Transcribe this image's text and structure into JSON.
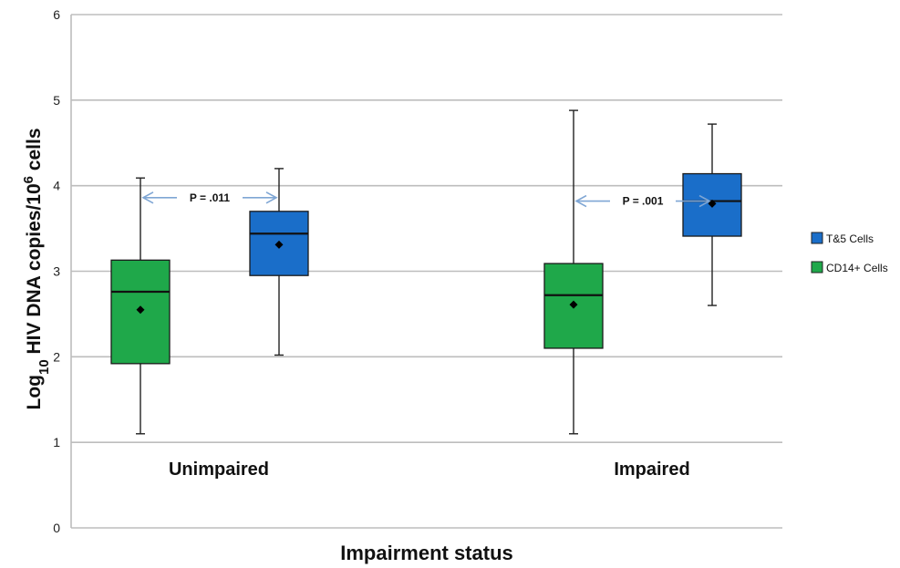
{
  "chart_data": {
    "type": "box",
    "title": "",
    "xlabel": "Impairment status",
    "ylabel": {
      "prefix": "Log",
      "prefix_sub": "10",
      "main": " HIV DNA copies/10",
      "main_sup": "6",
      "suffix": " cells"
    },
    "ylim": [
      0,
      6
    ],
    "yticks": [
      "0",
      "1",
      "2",
      "3",
      "4",
      "5",
      "6"
    ],
    "grid": true,
    "legend_position": "right",
    "categories": [
      "Unimpaired",
      "Impaired"
    ],
    "series": [
      {
        "name": "CD14+ Cells",
        "color": "#1fa84a",
        "boxes": [
          {
            "min": 1.1,
            "q1": 1.92,
            "median": 2.76,
            "q3": 3.13,
            "max": 4.09,
            "mean": 2.55
          },
          {
            "min": 1.1,
            "q1": 2.1,
            "median": 2.72,
            "q3": 3.09,
            "max": 4.88,
            "mean": 2.61
          }
        ]
      },
      {
        "name": "T&5 Cells",
        "color": "#1a6ec9",
        "boxes": [
          {
            "min": 2.02,
            "q1": 2.95,
            "median": 3.44,
            "q3": 3.7,
            "max": 4.2,
            "mean": 3.31
          },
          {
            "min": 2.6,
            "q1": 3.41,
            "median": 3.82,
            "q3": 4.14,
            "max": 4.72,
            "mean": 3.79
          }
        ]
      }
    ],
    "annotations": [
      {
        "text": "P = .011",
        "category": "Unimpaired",
        "y": 3.86
      },
      {
        "text": "P = .001",
        "category": "Impaired",
        "y": 3.82
      }
    ],
    "legend": [
      {
        "label": "T&5 Cells",
        "color": "#1a6ec9"
      },
      {
        "label": "CD14+ Cells",
        "color": "#1fa84a"
      }
    ]
  }
}
